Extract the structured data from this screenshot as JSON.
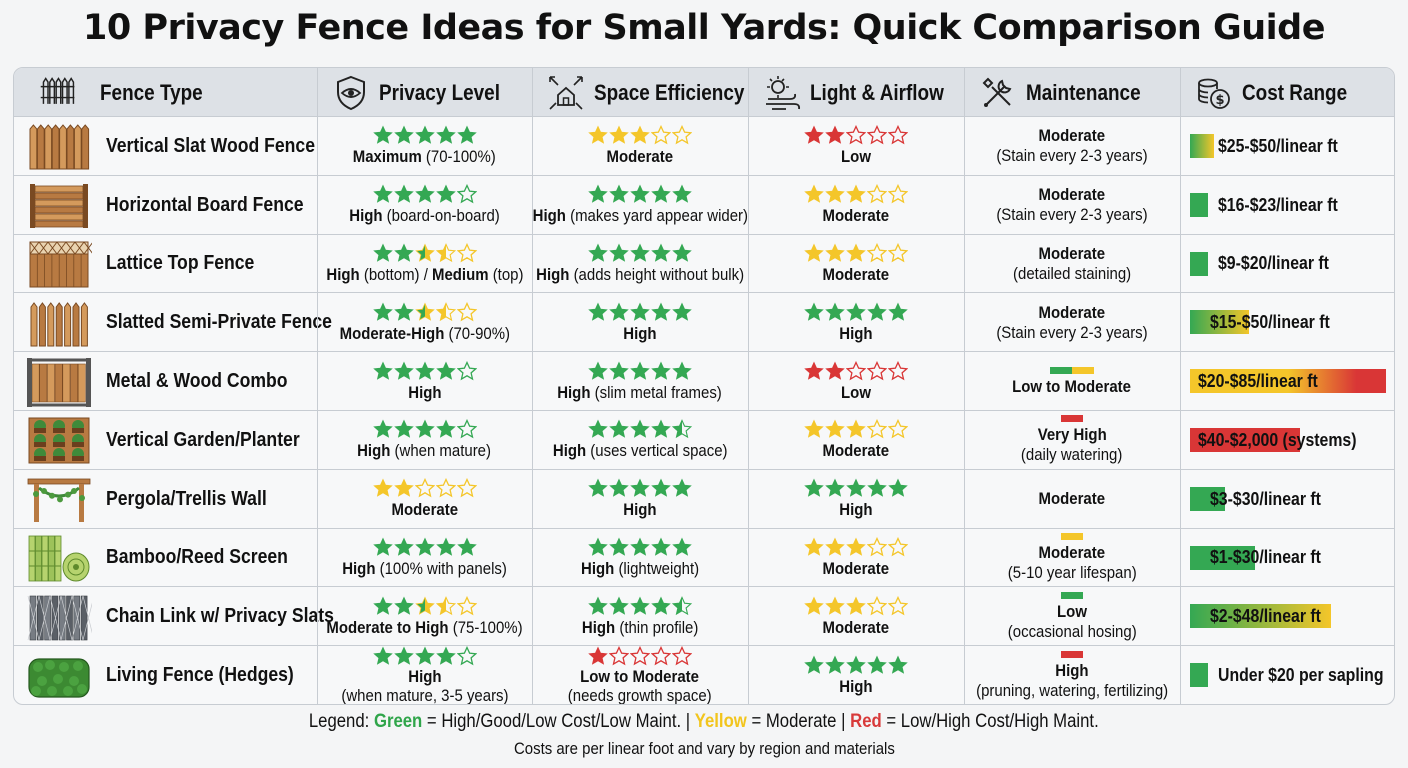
{
  "title": "10 Privacy Fence Ideas for Small Yards: Quick Comparison Guide",
  "colors": {
    "green": "#34a853",
    "yellow": "#f4c62a",
    "red": "#d93636",
    "header_bg": "#dde1e6"
  },
  "headers": [
    {
      "label": "Fence Type",
      "icon": "fence-icon"
    },
    {
      "label": "Privacy Level",
      "icon": "shield-eye-icon"
    },
    {
      "label": "Space Efficiency",
      "icon": "house-arrows-icon"
    },
    {
      "label": "Light & Airflow",
      "icon": "sun-wind-icon"
    },
    {
      "label": "Maintenance",
      "icon": "tools-icon"
    },
    {
      "label": "Cost Range",
      "icon": "coins-icon"
    }
  ],
  "rows": [
    {
      "name": "Vertical Slat Wood Fence",
      "icon": "vertical-slat-fence-icon",
      "privacy": {
        "stars": 5,
        "color": "green",
        "bold": "Maximum",
        "text": " (70-100%)"
      },
      "space": {
        "stars": 3,
        "color": "yellow",
        "bold": "Moderate",
        "text": ""
      },
      "light": {
        "stars": 2,
        "color": "red",
        "bold": "Low",
        "text": ""
      },
      "maint": {
        "bar": [],
        "title": "Moderate",
        "sub": "(Stain every 2-3 years)"
      },
      "cost": {
        "text": "$25-$50/linear ft",
        "gradient": "green-yellow",
        "level": 0.12
      }
    },
    {
      "name": "Horizontal Board Fence",
      "icon": "horizontal-board-fence-icon",
      "privacy": {
        "stars": 4,
        "color": "green",
        "bold": "High",
        "text": " (board-on-board)"
      },
      "space": {
        "stars": 5,
        "color": "green",
        "bold": "High",
        "text": " (makes yard appear wider)"
      },
      "light": {
        "stars": 3,
        "color": "yellow",
        "bold": "Moderate",
        "text": ""
      },
      "maint": {
        "bar": [],
        "title": "Moderate",
        "sub": "(Stain every 2-3 years)"
      },
      "cost": {
        "text": "$16-$23/linear ft",
        "gradient": "green",
        "level": 0.05
      }
    },
    {
      "name": "Lattice Top Fence",
      "icon": "lattice-top-fence-icon",
      "privacy": {
        "stars": 3.5,
        "color": "mixed",
        "bold": "High",
        "text": " (bottom) / ",
        "bold2": "Medium",
        "text2": " (top)"
      },
      "space": {
        "stars": 5,
        "color": "green",
        "bold": "High",
        "text": " (adds height without bulk)"
      },
      "light": {
        "stars": 3,
        "color": "yellow",
        "bold": "Moderate",
        "text": ""
      },
      "maint": {
        "bar": [],
        "title": "Moderate",
        "sub": "(detailed staining)"
      },
      "cost": {
        "text": "$9-$20/linear ft",
        "gradient": "green",
        "level": 0.04
      }
    },
    {
      "name": "Slatted Semi-Private Fence",
      "icon": "slatted-semi-private-fence-icon",
      "privacy": {
        "stars": 3.5,
        "color": "mixed",
        "bold": "Moderate-High",
        "text": " (70-90%)"
      },
      "space": {
        "stars": 5,
        "color": "green",
        "bold": "High",
        "text": ""
      },
      "light": {
        "stars": 5,
        "color": "green",
        "bold": "High",
        "text": ""
      },
      "maint": {
        "bar": [],
        "title": "Moderate",
        "sub": "(Stain every 2-3 years)"
      },
      "cost": {
        "text": "$15-$50/linear ft",
        "gradient": "green-yellow",
        "level": 0.3
      }
    },
    {
      "name": "Metal & Wood Combo",
      "icon": "metal-wood-combo-fence-icon",
      "privacy": {
        "stars": 4,
        "color": "green",
        "bold": "High",
        "text": ""
      },
      "space": {
        "stars": 5,
        "color": "green",
        "bold": "High",
        "text": " (slim metal frames)"
      },
      "light": {
        "stars": 2,
        "color": "red",
        "bold": "Low",
        "text": ""
      },
      "maint": {
        "bar": [
          "green",
          "yellow"
        ],
        "title": "Low to Moderate",
        "sub": ""
      },
      "cost": {
        "text": "$20-$85/linear ft",
        "gradient": "yellow-red",
        "level": 1.0
      }
    },
    {
      "name": "Vertical Garden/Planter",
      "icon": "vertical-garden-planter-icon",
      "privacy": {
        "stars": 4,
        "color": "green",
        "bold": "High",
        "text": " (when mature)"
      },
      "space": {
        "stars": 4.5,
        "color": "green",
        "bold": "High",
        "text": " (uses vertical space)"
      },
      "light": {
        "stars": 3,
        "color": "yellow",
        "bold": "Moderate",
        "text": ""
      },
      "maint": {
        "bar": [
          "red"
        ],
        "title": "Very High",
        "sub": "(daily watering)"
      },
      "cost": {
        "text": "$40-$2,000 (systems)",
        "gradient": "red",
        "level": 0.56
      }
    },
    {
      "name": "Pergola/Trellis Wall",
      "icon": "pergola-trellis-icon",
      "privacy": {
        "stars": 2,
        "color": "yellow",
        "bold": "Moderate",
        "text": ""
      },
      "space": {
        "stars": 5,
        "color": "green",
        "bold": "High",
        "text": ""
      },
      "light": {
        "stars": 5,
        "color": "green",
        "bold": "High",
        "text": ""
      },
      "maint": {
        "bar": [],
        "title": "Moderate",
        "sub": ""
      },
      "cost": {
        "text": "$3-$30/linear ft",
        "gradient": "green",
        "level": 0.18
      }
    },
    {
      "name": "Bamboo/Reed Screen",
      "icon": "bamboo-reed-screen-icon",
      "privacy": {
        "stars": 5,
        "color": "green",
        "bold": "High",
        "text": " (100% with panels)"
      },
      "space": {
        "stars": 5,
        "color": "green",
        "bold": "High",
        "text": " (lightweight)"
      },
      "light": {
        "stars": 3,
        "color": "yellow",
        "bold": "Moderate",
        "text": ""
      },
      "maint": {
        "bar": [
          "yellow"
        ],
        "title": "Moderate",
        "sub": "(5-10 year lifespan)"
      },
      "cost": {
        "text": "$1-$30/linear ft",
        "gradient": "green",
        "level": 0.33
      }
    },
    {
      "name": "Chain Link w/ Privacy Slats",
      "icon": "chain-link-slats-icon",
      "privacy": {
        "stars": 3.5,
        "color": "mixed",
        "bold": "Moderate to High",
        "text": " (75-100%)"
      },
      "space": {
        "stars": 4.5,
        "color": "green",
        "bold": "High",
        "text": " (thin profile)"
      },
      "light": {
        "stars": 3,
        "color": "yellow",
        "bold": "Moderate",
        "text": ""
      },
      "maint": {
        "bar": [
          "green"
        ],
        "title": "Low",
        "sub": "(occasional hosing)"
      },
      "cost": {
        "text": "$2-$48/linear ft",
        "gradient": "green-yellow",
        "level": 0.72
      }
    },
    {
      "name": "Living Fence (Hedges)",
      "icon": "hedge-icon",
      "privacy": {
        "stars": 4,
        "color": "green",
        "bold": "High",
        "text": "",
        "sub": "(when mature, 3-5 years)"
      },
      "space": {
        "stars": 1,
        "color": "red",
        "bold": "Low to Moderate",
        "text": "",
        "sub": "(needs growth space)",
        "outline_count": 4
      },
      "light": {
        "stars": 5,
        "color": "green",
        "bold": "High",
        "text": ""
      },
      "maint": {
        "bar": [
          "red"
        ],
        "title": "High",
        "sub": "(pruning, watering, fertilizing)"
      },
      "cost": {
        "text": "Under $20 per sapling",
        "gradient": "green",
        "level": 0.03
      }
    }
  ],
  "legend": {
    "prefix": "Legend: ",
    "green_word": "Green",
    "green_text": " = High/Good/Low Cost/Low Maint. | ",
    "yellow_word": "Yellow",
    "yellow_text": " = Moderate | ",
    "red_word": "Red",
    "red_text": " = Low/High Cost/High Maint."
  },
  "footnote": "Costs are per linear foot and vary by region and materials"
}
